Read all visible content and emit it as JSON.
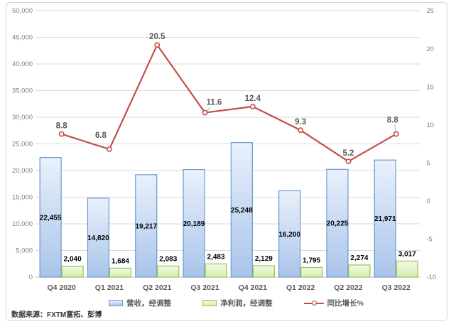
{
  "source_note": "数据来源：FXTM富拓、彭博",
  "colors": {
    "revenue_fill_top": "#e9f1fc",
    "revenue_fill_bottom": "#a9c4ea",
    "revenue_border": "#6d99cf",
    "profit_fill_top": "#f3fbe5",
    "profit_fill_bottom": "#d3ecad",
    "profit_border": "#9bc05c",
    "line_color": "#c0504d",
    "marker_fill": "#f9edec",
    "gridline": "#d9d9d9",
    "axis_line": "#bfbfbf",
    "axis_text": "#808080",
    "category_text": "#595959",
    "bar_label_text": "#000000",
    "line_label_text": "#595959",
    "leader_line": "#a6a6a6",
    "frame_border": "#d6d6d6"
  },
  "chart_data": {
    "type": "combo",
    "title": "",
    "categories": [
      "Q4 2020",
      "Q1 2021",
      "Q2 2021",
      "Q3 2021",
      "Q4 2021",
      "Q1 2022",
      "Q2 2022",
      "Q3 2022"
    ],
    "series": [
      {
        "name": "营收，经调整",
        "type": "bar",
        "axis": "left",
        "values": [
          22455,
          14820,
          19217,
          20189,
          25248,
          16200,
          20225,
          21971
        ],
        "labels": [
          "22,455",
          "14,820",
          "19,217",
          "20,189",
          "25,248",
          "16,200",
          "20,225",
          "21,971"
        ]
      },
      {
        "name": "净利润，经调整",
        "type": "bar",
        "axis": "left",
        "values": [
          2040,
          1684,
          2083,
          2483,
          2129,
          1795,
          2274,
          3017
        ],
        "labels": [
          "2,040",
          "1,684",
          "2,083",
          "2,483",
          "2,129",
          "1,795",
          "2,274",
          "3,017"
        ]
      },
      {
        "name": "同比增长%",
        "type": "line",
        "axis": "right",
        "values": [
          8.8,
          6.8,
          20.5,
          11.6,
          12.4,
          9.3,
          5.2,
          8.8
        ],
        "labels": [
          "8.8",
          "6.8",
          "20.5",
          "11.6",
          "12.4",
          "9.3",
          "5.2",
          "8.8"
        ]
      }
    ],
    "axes": {
      "left": {
        "min": 0,
        "max": 50000,
        "step": 5000,
        "tick_labels": [
          "0",
          "5,000",
          "10,000",
          "15,000",
          "20,000",
          "25,000",
          "30,000",
          "35,000",
          "40,000",
          "45,000",
          "50,000"
        ]
      },
      "right": {
        "min": -10,
        "max": 25,
        "step": 5,
        "tick_labels": [
          "-10",
          "-5",
          "0",
          "5",
          "10",
          "15",
          "20",
          "25"
        ]
      }
    },
    "grid": true,
    "legend_position": "bottom"
  }
}
